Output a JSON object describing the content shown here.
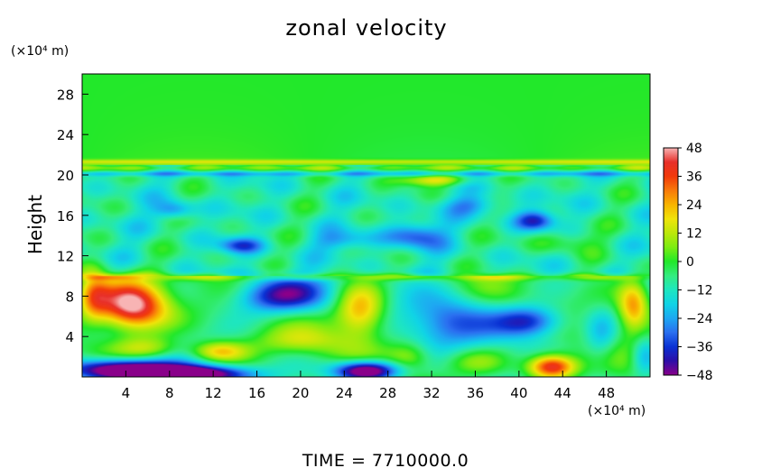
{
  "chart_data": {
    "type": "heatmap",
    "title": "zonal velocity",
    "ylabel": "Height",
    "y_unit_label": "(×10⁴ m)",
    "x_unit_label": "(×10⁴ m)",
    "footer": "TIME  =  7710000.0",
    "xlim": [
      0,
      52
    ],
    "ylim": [
      0,
      30
    ],
    "x_ticks": [
      4,
      8,
      12,
      16,
      20,
      24,
      28,
      32,
      36,
      40,
      44,
      48
    ],
    "y_ticks": [
      4,
      8,
      12,
      16,
      20,
      24,
      28
    ],
    "colorbar": {
      "min": -48,
      "max": 48,
      "ticks": [
        48,
        36,
        24,
        12,
        0,
        -12,
        -24,
        -36,
        -48
      ],
      "stops": [
        {
          "v": -48,
          "color": "#8a008a"
        },
        {
          "v": -42,
          "color": "#2d0fa8"
        },
        {
          "v": -36,
          "color": "#0a32d4"
        },
        {
          "v": -30,
          "color": "#2b6ff0"
        },
        {
          "v": -24,
          "color": "#1ea8f2"
        },
        {
          "v": -18,
          "color": "#10d4e6"
        },
        {
          "v": -12,
          "color": "#1ee6c0"
        },
        {
          "v": -6,
          "color": "#34ec80"
        },
        {
          "v": 0,
          "color": "#22e82a"
        },
        {
          "v": 6,
          "color": "#7cec12"
        },
        {
          "v": 12,
          "color": "#bce80a"
        },
        {
          "v": 18,
          "color": "#f0e40a"
        },
        {
          "v": 24,
          "color": "#f8b400"
        },
        {
          "v": 30,
          "color": "#f87a0a"
        },
        {
          "v": 36,
          "color": "#f23a0a"
        },
        {
          "v": 42,
          "color": "#e8302a"
        },
        {
          "v": 48,
          "color": "#f8b4b4"
        }
      ]
    },
    "field_features": [
      {
        "x": 4.5,
        "y": 7,
        "value": 52,
        "note": "strong eastward jet"
      },
      {
        "x": 17.5,
        "y": 8,
        "value": -38
      },
      {
        "x": 25.5,
        "y": 6.5,
        "value": 32
      },
      {
        "x": 26,
        "y": 0.6,
        "value": -52
      },
      {
        "x": 3,
        "y": 0.8,
        "value": -50
      },
      {
        "x": 43,
        "y": 1,
        "value": 48
      },
      {
        "x": 32,
        "y": 19.5,
        "value": 28
      },
      {
        "x": 41,
        "y": 5.5,
        "value": -32
      },
      {
        "x": 50.5,
        "y": 7,
        "value": 36
      }
    ]
  }
}
